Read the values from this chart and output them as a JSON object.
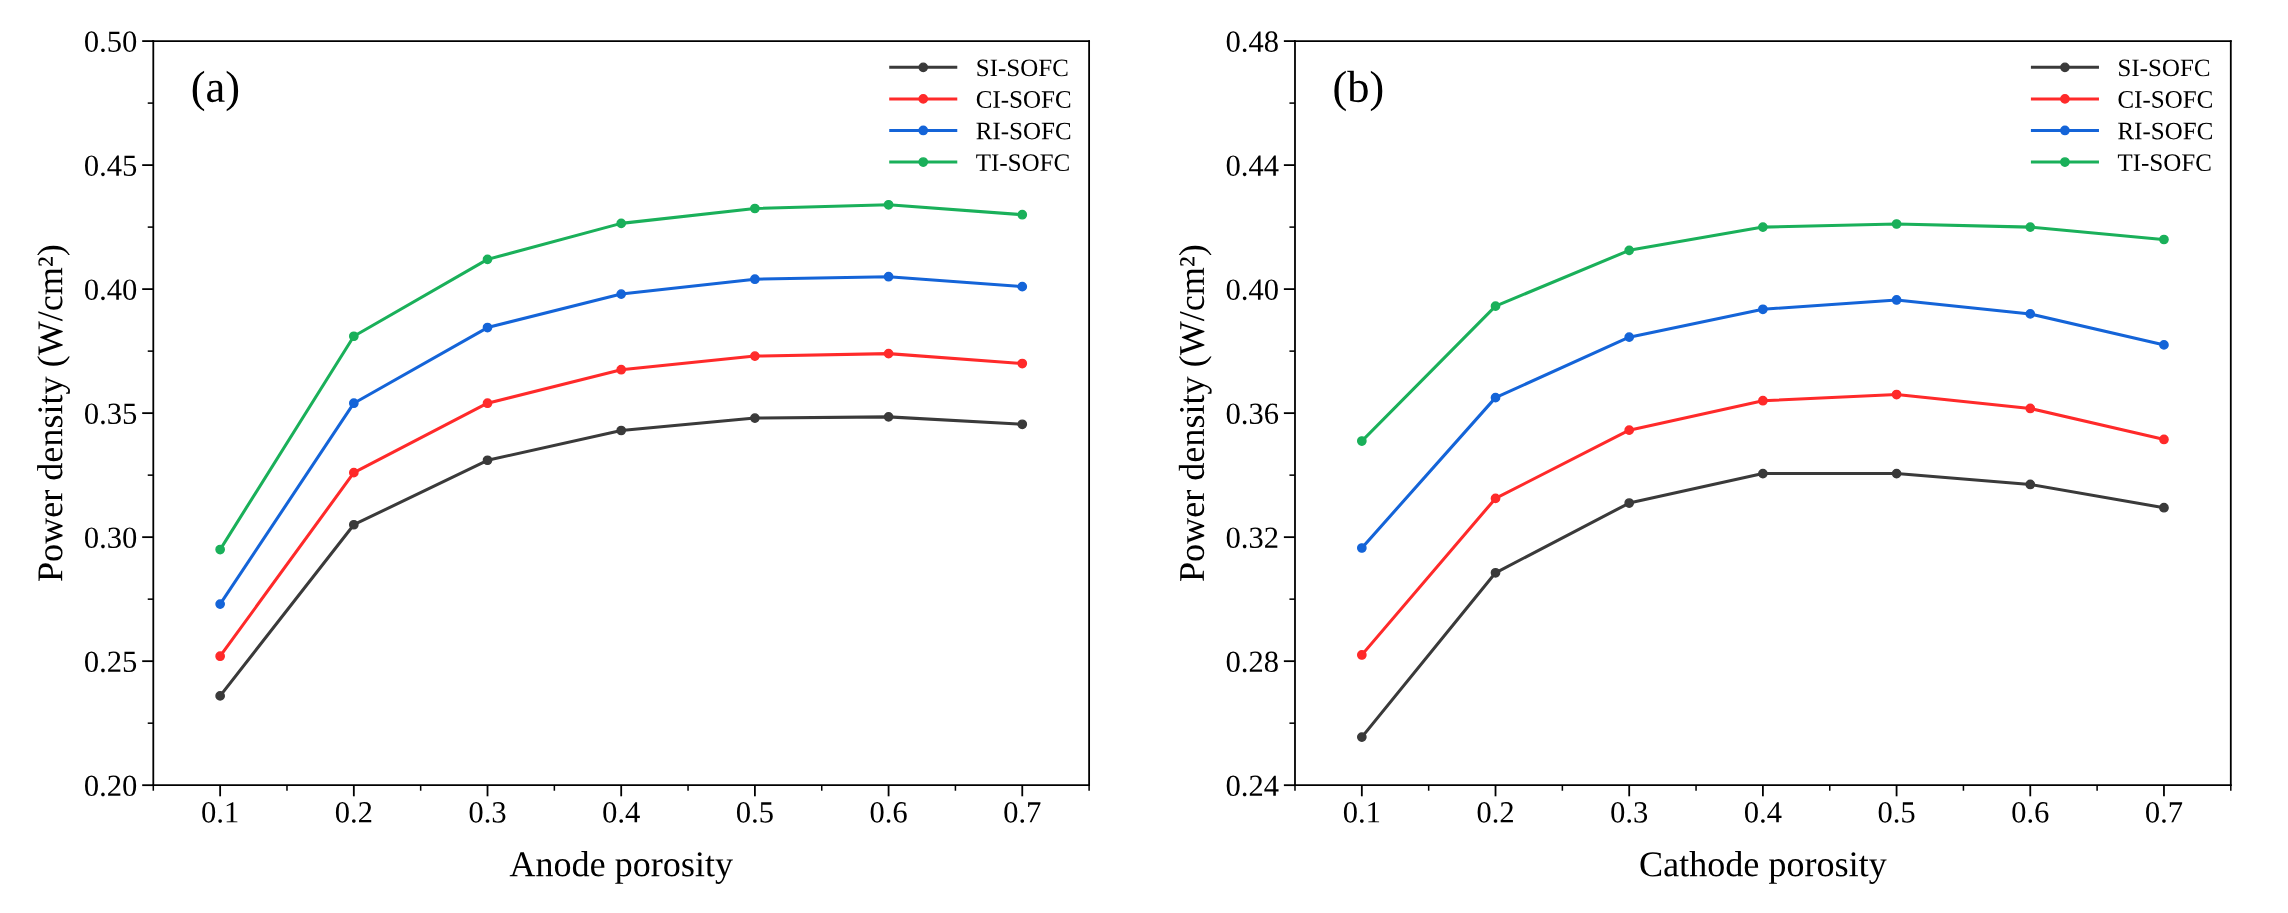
{
  "chart_data": [
    {
      "type": "line",
      "xlabel": "Anode porosity",
      "ylabel": "Power density (W/cm²)",
      "annotations": [
        "(a)"
      ],
      "x": [
        0.1,
        0.2,
        0.3,
        0.4,
        0.5,
        0.6,
        0.7
      ],
      "xlim": [
        0.05,
        0.75
      ],
      "xticks": [
        0.1,
        0.2,
        0.3,
        0.4,
        0.5,
        0.6,
        0.7
      ],
      "ylim": [
        0.2,
        0.5
      ],
      "yticks": [
        {
          "value": 0.2,
          "label": "0.20"
        },
        {
          "value": 0.25,
          "label": "0.25"
        },
        {
          "value": 0.3,
          "label": "0.30"
        },
        {
          "value": 0.35,
          "label": "0.35"
        },
        {
          "value": 0.4,
          "label": "0.40"
        },
        {
          "value": 0.45,
          "label": "0.45"
        },
        {
          "value": 0.5,
          "label": "0.50"
        }
      ],
      "grid": false,
      "legend": "top right",
      "marker": "circle",
      "line_style": "solid",
      "series": [
        {
          "name": "SI-SOFC",
          "color": "#3a3a3a",
          "values": [
            0.236,
            0.305,
            0.331,
            0.343,
            0.348,
            0.3485,
            0.3455
          ]
        },
        {
          "name": "CI-SOFC",
          "color": "#ff2a2a",
          "values": [
            0.252,
            0.326,
            0.354,
            0.3675,
            0.373,
            0.374,
            0.37
          ]
        },
        {
          "name": "RI-SOFC",
          "color": "#1464d8",
          "values": [
            0.273,
            0.354,
            0.3845,
            0.398,
            0.404,
            0.405,
            0.401
          ]
        },
        {
          "name": "TI-SOFC",
          "color": "#1ab05a",
          "values": [
            0.295,
            0.381,
            0.412,
            0.4265,
            0.4325,
            0.434,
            0.43
          ]
        }
      ]
    },
    {
      "type": "line",
      "xlabel": "Cathode porosity",
      "ylabel": "Power density (W/cm²)",
      "annotations": [
        "(b)"
      ],
      "x": [
        0.1,
        0.2,
        0.3,
        0.4,
        0.5,
        0.6,
        0.7
      ],
      "xlim": [
        0.05,
        0.75
      ],
      "xticks": [
        0.1,
        0.2,
        0.3,
        0.4,
        0.5,
        0.6,
        0.7
      ],
      "ylim": [
        0.24,
        0.48
      ],
      "yticks": [
        0.24,
        0.28,
        0.32,
        0.36,
        {
          "value": 0.4,
          "label": "0.40"
        },
        0.44,
        0.48
      ],
      "grid": false,
      "legend": "top right",
      "marker": "circle",
      "line_style": "solid",
      "series": [
        {
          "name": "SI-SOFC",
          "color": "#3a3a3a",
          "values": [
            0.2555,
            0.3085,
            0.331,
            0.3405,
            0.3405,
            0.337,
            0.3295
          ]
        },
        {
          "name": "CI-SOFC",
          "color": "#ff2a2a",
          "values": [
            0.282,
            0.3325,
            0.3545,
            0.364,
            0.366,
            0.3615,
            0.3515
          ]
        },
        {
          "name": "RI-SOFC",
          "color": "#1464d8",
          "values": [
            0.3165,
            0.365,
            0.3845,
            0.3935,
            0.3965,
            0.392,
            0.382
          ]
        },
        {
          "name": "TI-SOFC",
          "color": "#1ab05a",
          "values": [
            0.351,
            0.3945,
            0.4125,
            0.42,
            0.421,
            0.42,
            0.416
          ]
        }
      ]
    }
  ]
}
